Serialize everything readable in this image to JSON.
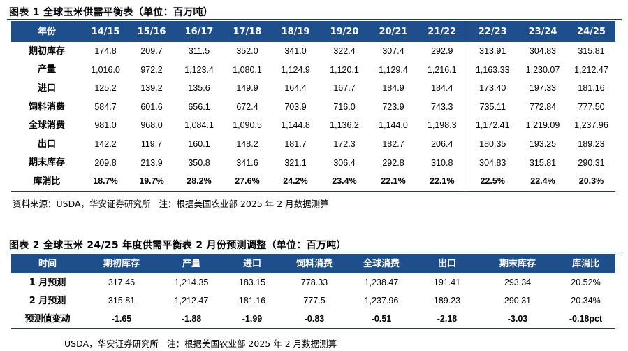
{
  "figure1": {
    "title": "图表 1 全球玉米供需平衡表（单位：百万吨）",
    "header": [
      "年份",
      "14/15",
      "15/16",
      "16/17",
      "17/18",
      "18/19",
      "19/20",
      "20/21",
      "21/22",
      "22/23",
      "23/24",
      "24/25"
    ],
    "rows": [
      {
        "label": "期初库存",
        "values": [
          "174.8",
          "209.7",
          "311.5",
          "352.0",
          "341.0",
          "322.4",
          "307.4",
          "292.9",
          "313.91",
          "304.83",
          "315.81"
        ]
      },
      {
        "label": "产量",
        "values": [
          "1,016.0",
          "972.2",
          "1,123.4",
          "1,080.1",
          "1,124.9",
          "1,120.1",
          "1,129.4",
          "1,216.1",
          "1,163.33",
          "1,230.07",
          "1,212.47"
        ]
      },
      {
        "label": "进口",
        "values": [
          "125.2",
          "139.2",
          "135.6",
          "149.9",
          "164.4",
          "167.7",
          "184.9",
          "184.4",
          "173.40",
          "197.33",
          "181.16"
        ]
      },
      {
        "label": "饲料消费",
        "values": [
          "584.7",
          "601.6",
          "656.1",
          "672.4",
          "703.9",
          "716.0",
          "723.9",
          "743.3",
          "735.11",
          "772.84",
          "777.50"
        ]
      },
      {
        "label": "全球消费",
        "values": [
          "981.0",
          "968.0",
          "1,084.1",
          "1,090.5",
          "1,144.8",
          "1,136.2",
          "1,144.0",
          "1,198.3",
          "1,172.41",
          "1,219.09",
          "1,237.96"
        ]
      },
      {
        "label": "出口",
        "values": [
          "142.2",
          "119.7",
          "160.1",
          "148.2",
          "181.7",
          "172.3",
          "182.7",
          "206.4",
          "180.35",
          "193.25",
          "189.23"
        ]
      },
      {
        "label": "期末库存",
        "values": [
          "209.8",
          "213.9",
          "350.8",
          "341.6",
          "321.1",
          "306.4",
          "292.8",
          "310.8",
          "304.83",
          "315.81",
          "290.31"
        ]
      },
      {
        "label": "库消比",
        "values": [
          "18.7%",
          "19.7%",
          "28.2%",
          "27.6%",
          "24.2%",
          "23.4%",
          "22.1%",
          "22.1%",
          "22.5%",
          "22.4%",
          "20.3%"
        ]
      }
    ],
    "source": "资料来源：USDA，华安证券研究所   注：根据美国农业部 2025 年 2 月数据测算"
  },
  "figure2": {
    "title": "图表 2 全球玉米 24/25 年度供需平衡表 2 月份预测调整（单位：百万吨）",
    "header": [
      "时间",
      "期初库存",
      "产量",
      "进口",
      "饲料消费",
      "全球消费",
      "出口",
      "期末库存",
      "库消比"
    ],
    "rows": [
      {
        "label": "1 月预测",
        "values": [
          "317.46",
          "1,214.35",
          "183.15",
          "778.33",
          "1,238.47",
          "191.41",
          "293.34",
          "20.52%"
        ]
      },
      {
        "label": "2 月预测",
        "values": [
          "315.81",
          "1,212.47",
          "181.16",
          "777.5",
          "1,237.96",
          "189.23",
          "290.31",
          "20.34%"
        ]
      },
      {
        "label": "预测值变动",
        "values": [
          "-1.65",
          "-1.88",
          "-1.99",
          "-0.83",
          "-0.51",
          "-2.18",
          "-3.03",
          "-0.18pct"
        ]
      }
    ],
    "source": "USDA，华安证券研究所   注：根据美国农业部 2025 年 2 月数据测算"
  }
}
